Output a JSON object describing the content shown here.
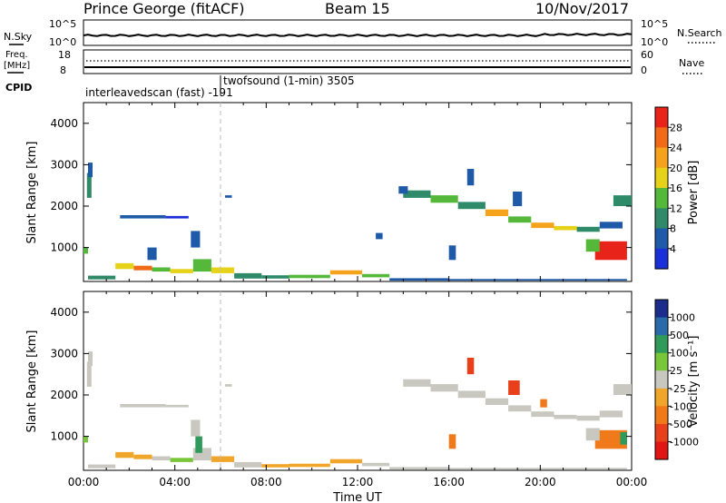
{
  "header": {
    "station": "Prince George (fitACF)",
    "beam": "Beam 15",
    "date": "10/Nov/2017"
  },
  "strips": {
    "nsky_label": "N.Sky",
    "nsearch_label": "N.Search",
    "nsky_ticks": [
      "10^5",
      "10^0"
    ],
    "nsearch_ticks": [
      "10^5",
      "10^0"
    ],
    "freq_label_1": "Freq.",
    "freq_label_2": "[MHz]",
    "freq_ticks": [
      "18",
      "8"
    ],
    "nave_label": "Nave",
    "nave_ticks": [
      "60",
      "0"
    ],
    "cpid_label": "CPID",
    "cpid_1": "interleavedscan (fast) -191",
    "cpid_2": "twofsound (1-min) 3505"
  },
  "colors": {
    "power": [
      "#1a2fd8",
      "#1e5aa8",
      "#2f8a6a",
      "#55b83a",
      "#e7d21a",
      "#f5a21c",
      "#f06a18",
      "#e8241a"
    ],
    "velocity": [
      "#1b2c8a",
      "#2a6aa8",
      "#2f9a5a",
      "#7ac63a",
      "#c8c8c0",
      "#f0a62a",
      "#f07a1a",
      "#e8401a",
      "#e01515"
    ]
  },
  "chart_data": [
    {
      "type": "heatmap",
      "name": "power",
      "ylabel": "Slant Range [km]",
      "ylim": [
        180,
        4500
      ],
      "yticks": [
        1000,
        2000,
        3000,
        4000
      ],
      "xlim": [
        0,
        24
      ],
      "colorbar_label": "Power [dB]",
      "colorbar_ticks": [
        "4",
        "8",
        "12",
        "16",
        "20",
        "24",
        "28"
      ],
      "cells": [
        [
          0.15,
          0.35,
          2200,
          2800,
          2
        ],
        [
          0.2,
          0.4,
          2700,
          3050,
          1
        ],
        [
          0.0,
          0.2,
          850,
          1000,
          3
        ],
        [
          1.6,
          3.6,
          1700,
          1780,
          1
        ],
        [
          3.6,
          4.6,
          1700,
          1760,
          0
        ],
        [
          0.2,
          1.4,
          230,
          320,
          2
        ],
        [
          1.4,
          2.2,
          480,
          620,
          4
        ],
        [
          2.2,
          3.0,
          450,
          560,
          6
        ],
        [
          3.0,
          3.8,
          420,
          520,
          3
        ],
        [
          3.8,
          4.8,
          380,
          480,
          4
        ],
        [
          4.8,
          5.6,
          420,
          720,
          3
        ],
        [
          5.6,
          6.6,
          380,
          520,
          4
        ],
        [
          6.6,
          7.8,
          250,
          380,
          2
        ],
        [
          7.8,
          9.0,
          250,
          330,
          2
        ],
        [
          9.0,
          10.8,
          260,
          340,
          3
        ],
        [
          10.8,
          12.2,
          350,
          450,
          5
        ],
        [
          12.2,
          13.4,
          280,
          360,
          3
        ],
        [
          13.4,
          16.0,
          200,
          260,
          1
        ],
        [
          16.0,
          20.0,
          200,
          240,
          1
        ],
        [
          20.0,
          23.8,
          200,
          240,
          1
        ],
        [
          4.7,
          5.1,
          1000,
          1400,
          1
        ],
        [
          2.8,
          3.2,
          700,
          1000,
          1
        ],
        [
          14.0,
          15.2,
          2200,
          2380,
          2
        ],
        [
          15.2,
          16.4,
          2080,
          2260,
          3
        ],
        [
          16.4,
          17.6,
          1930,
          2100,
          2
        ],
        [
          17.6,
          18.6,
          1760,
          1920,
          5
        ],
        [
          18.6,
          19.6,
          1600,
          1750,
          3
        ],
        [
          19.6,
          20.6,
          1470,
          1600,
          5
        ],
        [
          20.6,
          21.6,
          1420,
          1520,
          4
        ],
        [
          21.6,
          22.6,
          1380,
          1500,
          2
        ],
        [
          22.6,
          23.6,
          1460,
          1620,
          1
        ],
        [
          23.2,
          24.0,
          2000,
          2260,
          2
        ],
        [
          22.4,
          23.8,
          700,
          1150,
          7
        ],
        [
          22.0,
          22.6,
          900,
          1200,
          3
        ],
        [
          18.8,
          19.2,
          2000,
          2350,
          1
        ],
        [
          16.8,
          17.1,
          2500,
          2900,
          1
        ],
        [
          13.8,
          14.2,
          2300,
          2480,
          1
        ],
        [
          12.8,
          13.1,
          1200,
          1350,
          1
        ],
        [
          6.2,
          6.5,
          2200,
          2260,
          1
        ],
        [
          16.0,
          16.3,
          700,
          1050,
          1
        ]
      ]
    },
    {
      "type": "heatmap",
      "name": "velocity",
      "ylabel": "Slant Range [km]",
      "ylim": [
        180,
        4500
      ],
      "yticks": [
        1000,
        2000,
        3000,
        4000
      ],
      "xlim": [
        0,
        24
      ],
      "xticks": [
        "00:00",
        "04:00",
        "08:00",
        "12:00",
        "16:00",
        "20:00",
        "00:00"
      ],
      "xlabel": "Time UT",
      "colorbar_label": "Velocity [m s⁻¹]",
      "colorbar_ticks": [
        "1000",
        "500",
        "100",
        "25",
        "-25",
        "-100",
        "-500",
        "-1000"
      ],
      "cells": [
        [
          0.15,
          0.35,
          2200,
          2800,
          4
        ],
        [
          0.2,
          0.4,
          2700,
          3050,
          4
        ],
        [
          0.0,
          0.2,
          850,
          1000,
          3
        ],
        [
          1.6,
          3.6,
          1700,
          1780,
          4
        ],
        [
          3.6,
          4.6,
          1700,
          1760,
          4
        ],
        [
          0.2,
          1.4,
          230,
          320,
          4
        ],
        [
          1.4,
          2.2,
          480,
          620,
          5
        ],
        [
          2.2,
          3.0,
          450,
          560,
          5
        ],
        [
          3.0,
          3.8,
          420,
          520,
          4
        ],
        [
          3.8,
          4.8,
          380,
          480,
          3
        ],
        [
          4.8,
          5.6,
          420,
          720,
          4
        ],
        [
          5.6,
          6.6,
          380,
          520,
          5
        ],
        [
          6.6,
          7.8,
          250,
          380,
          4
        ],
        [
          7.8,
          9.0,
          250,
          330,
          5
        ],
        [
          9.0,
          10.8,
          260,
          340,
          5
        ],
        [
          10.8,
          12.2,
          350,
          450,
          5
        ],
        [
          12.2,
          13.4,
          280,
          360,
          4
        ],
        [
          13.4,
          16.0,
          200,
          260,
          4
        ],
        [
          16.0,
          20.0,
          200,
          240,
          4
        ],
        [
          20.0,
          23.8,
          200,
          240,
          4
        ],
        [
          4.7,
          5.1,
          1000,
          1400,
          4
        ],
        [
          4.9,
          5.2,
          600,
          1000,
          2
        ],
        [
          14.0,
          15.2,
          2200,
          2380,
          4
        ],
        [
          15.2,
          16.4,
          2080,
          2260,
          4
        ],
        [
          16.4,
          17.6,
          1930,
          2100,
          4
        ],
        [
          17.6,
          18.6,
          1760,
          1920,
          4
        ],
        [
          18.6,
          19.6,
          1600,
          1750,
          4
        ],
        [
          19.6,
          20.6,
          1470,
          1600,
          4
        ],
        [
          20.6,
          21.6,
          1420,
          1520,
          4
        ],
        [
          21.6,
          22.6,
          1380,
          1500,
          4
        ],
        [
          22.6,
          23.6,
          1460,
          1620,
          4
        ],
        [
          23.2,
          24.0,
          2000,
          2260,
          4
        ],
        [
          22.4,
          23.8,
          700,
          1150,
          6
        ],
        [
          22.0,
          22.6,
          900,
          1200,
          4
        ],
        [
          18.6,
          19.1,
          2000,
          2350,
          7
        ],
        [
          16.8,
          17.1,
          2500,
          2900,
          7
        ],
        [
          23.5,
          23.8,
          800,
          1100,
          2
        ],
        [
          20.0,
          20.3,
          1700,
          1900,
          6
        ],
        [
          6.2,
          6.5,
          2200,
          2260,
          4
        ],
        [
          16.0,
          16.3,
          700,
          1050,
          6
        ]
      ]
    }
  ]
}
